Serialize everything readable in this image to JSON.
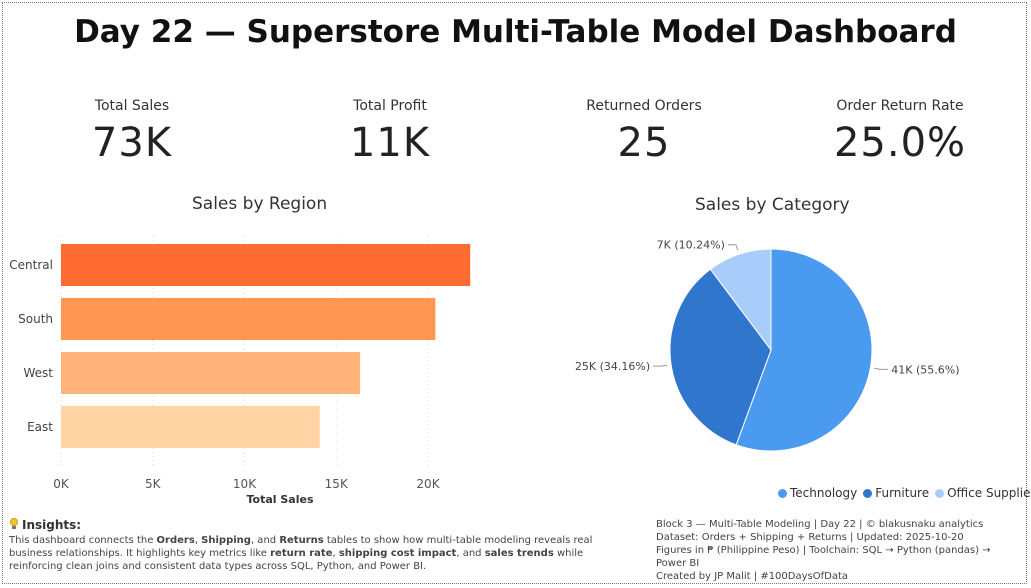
{
  "title": "Day 22 — Superstore Multi-Table Model Dashboard",
  "kpis": [
    {
      "label": "Total Sales",
      "value": "73K"
    },
    {
      "label": "Total Profit",
      "value": "11K"
    },
    {
      "label": "Returned Orders",
      "value": "25"
    },
    {
      "label": "Order Return Rate",
      "value": "25.0%"
    }
  ],
  "chart_data": [
    {
      "type": "bar",
      "orientation": "horizontal",
      "title": "Sales by Region",
      "categories": [
        "Central",
        "South",
        "West",
        "East"
      ],
      "values": [
        22300,
        20400,
        16300,
        14100
      ],
      "xlabel": "Total Sales",
      "xlim": [
        0,
        24000
      ],
      "xticks": [
        "0K",
        "5K",
        "10K",
        "15K",
        "20K"
      ],
      "colors": [
        "#ff6b30",
        "#ff9651",
        "#ffb27a",
        "#ffd3a3"
      ],
      "grid": true
    },
    {
      "type": "pie",
      "title": "Sales by Category",
      "categories": [
        "Technology",
        "Furniture",
        "Office Supplies"
      ],
      "values": [
        55.6,
        34.16,
        10.24
      ],
      "labels": [
        "41K (55.6%)",
        "25K (34.16%)",
        "7K (10.24%)"
      ],
      "colors": [
        "#4a9af0",
        "#2f76cc",
        "#a9cdfa"
      ],
      "legend": "bottom-right"
    }
  ],
  "insights": {
    "heading": "Insights:",
    "body": [
      {
        "t": "This dashboard connects the ",
        "b": false
      },
      {
        "t": "Orders",
        "b": true
      },
      {
        "t": ", ",
        "b": false
      },
      {
        "t": "Shipping",
        "b": true
      },
      {
        "t": ", and ",
        "b": false
      },
      {
        "t": "Returns",
        "b": true
      },
      {
        "t": " tables to show how multi-table modeling reveals real business relationships. It highlights key metrics like ",
        "b": false
      },
      {
        "t": "return rate",
        "b": true
      },
      {
        "t": ", ",
        "b": false
      },
      {
        "t": "shipping cost impact",
        "b": true
      },
      {
        "t": ", and ",
        "b": false
      },
      {
        "t": "sales trends",
        "b": true
      },
      {
        "t": " while reinforcing clean joins and consistent data types across SQL, Python, and Power BI.",
        "b": false
      }
    ]
  },
  "footer": {
    "lines": [
      "Block 3 — Multi-Table Modeling | Day 22 | © blakusnaku analytics",
      "Dataset: Orders + Shipping + Returns | Updated: 2025-10-20",
      "Figures in ₱ (Philippine Peso) | Toolchain: SQL → Python (pandas) → Power BI",
      "Created by JP Malit | #100DaysOfData"
    ]
  }
}
